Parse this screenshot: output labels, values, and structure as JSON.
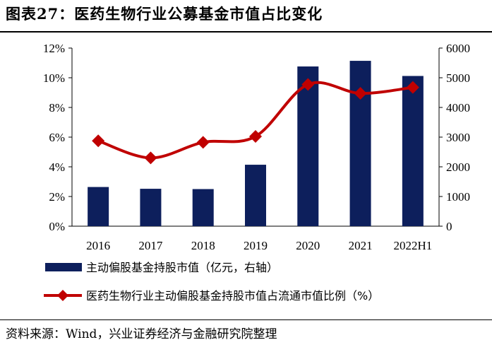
{
  "title": "图表27：医药生物行业公募基金市值占比变化",
  "source": "资料来源：Wind，兴业证券经济与金融研究院整理",
  "colors": {
    "bar": "#0d1f5c",
    "line": "#c00000"
  },
  "chart_data": {
    "type": "bar+line",
    "categories": [
      "2016",
      "2017",
      "2018",
      "2019",
      "2020",
      "2021",
      "2022H1"
    ],
    "series": [
      {
        "name": "主动偏股基金持股市值（亿元，右轴）",
        "type": "bar",
        "axis": "right",
        "values": [
          1320,
          1260,
          1250,
          2070,
          5380,
          5570,
          5060
        ]
      },
      {
        "name": "医药生物行业主动偏股基金持股市值占流通市值比例（%）",
        "type": "line",
        "axis": "left",
        "values": [
          5.75,
          4.6,
          5.65,
          6.05,
          9.55,
          8.95,
          9.35
        ]
      }
    ],
    "left_axis": {
      "min": 0,
      "max": 12,
      "step": 2,
      "tick_labels": [
        "0%",
        "2%",
        "4%",
        "6%",
        "8%",
        "10%",
        "12%"
      ]
    },
    "right_axis": {
      "min": 0,
      "max": 6000,
      "step": 1000,
      "tick_labels": [
        "0",
        "1000",
        "2000",
        "3000",
        "4000",
        "5000",
        "6000"
      ]
    },
    "legend_position": "bottom"
  }
}
